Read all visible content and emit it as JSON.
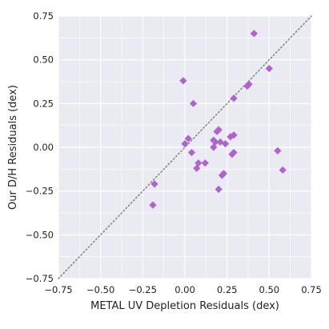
{
  "chart_data": {
    "type": "scatter",
    "title": "",
    "xlabel": "METAL UV Depletion Residuals (dex)",
    "ylabel": "Our D/H Residuals (dex)",
    "xlim": [
      -0.75,
      0.75
    ],
    "ylim": [
      -0.75,
      0.75
    ],
    "xticks": [
      -0.75,
      -0.5,
      -0.25,
      0.0,
      0.25,
      0.5,
      0.75
    ],
    "yticks": [
      -0.75,
      -0.5,
      -0.25,
      0.0,
      0.25,
      0.5,
      0.75
    ],
    "xtick_labels": [
      "−0.75",
      "−0.50",
      "−0.25",
      "0.00",
      "0.25",
      "0.50",
      "0.75"
    ],
    "ytick_labels": [
      "−0.75",
      "−0.50",
      "−0.25",
      "0.00",
      "0.25",
      "0.50",
      "0.75"
    ],
    "grid": true,
    "reference_line": "y = x",
    "marker": "diamond",
    "marker_color": "#b063cc",
    "background_color": "#eaeaf2",
    "points": [
      {
        "x": 0.41,
        "y": 0.65
      },
      {
        "x": 0.5,
        "y": 0.45
      },
      {
        "x": 0.38,
        "y": 0.36
      },
      {
        "x": 0.37,
        "y": 0.35
      },
      {
        "x": -0.01,
        "y": 0.38
      },
      {
        "x": 0.29,
        "y": 0.28
      },
      {
        "x": 0.05,
        "y": 0.25
      },
      {
        "x": 0.2,
        "y": 0.1
      },
      {
        "x": 0.19,
        "y": 0.09
      },
      {
        "x": 0.29,
        "y": 0.07
      },
      {
        "x": 0.27,
        "y": 0.06
      },
      {
        "x": 0.02,
        "y": 0.05
      },
      {
        "x": 0.17,
        "y": 0.04
      },
      {
        "x": 0.21,
        "y": 0.03
      },
      {
        "x": 0.18,
        "y": 0.03
      },
      {
        "x": 0.0,
        "y": 0.02
      },
      {
        "x": 0.24,
        "y": 0.02
      },
      {
        "x": 0.17,
        "y": 0.0
      },
      {
        "x": 0.55,
        "y": -0.02
      },
      {
        "x": 0.04,
        "y": -0.03
      },
      {
        "x": 0.29,
        "y": -0.03
      },
      {
        "x": 0.28,
        "y": -0.04
      },
      {
        "x": 0.08,
        "y": -0.09
      },
      {
        "x": 0.12,
        "y": -0.09
      },
      {
        "x": 0.07,
        "y": -0.12
      },
      {
        "x": 0.58,
        "y": -0.13
      },
      {
        "x": 0.23,
        "y": -0.15
      },
      {
        "x": 0.22,
        "y": -0.16
      },
      {
        "x": -0.18,
        "y": -0.21
      },
      {
        "x": 0.2,
        "y": -0.24
      },
      {
        "x": -0.19,
        "y": -0.33
      }
    ]
  }
}
